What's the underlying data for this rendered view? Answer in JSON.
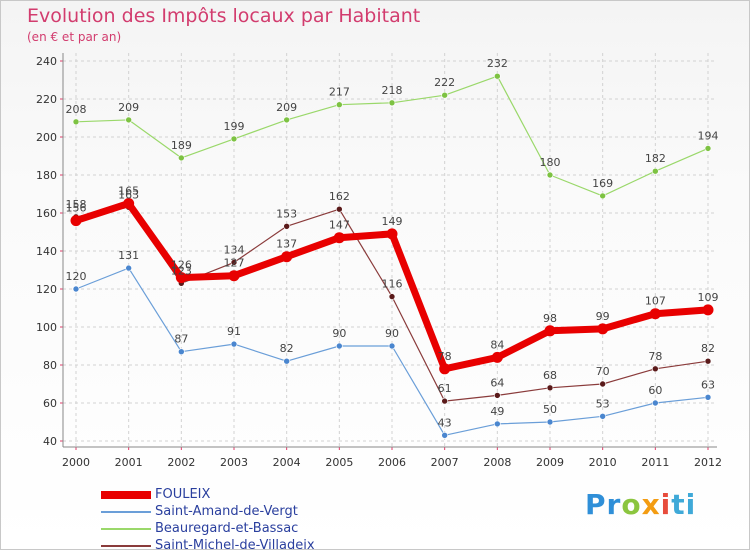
{
  "title": "Evolution des Impôts locaux par Habitant",
  "subtitle": "(en € et par an)",
  "logo": {
    "text": "Proxiti",
    "parts": [
      "Pr",
      "o",
      "x",
      "i",
      "ti"
    ]
  },
  "chart_data": {
    "type": "line",
    "title": "Evolution des Impôts locaux par Habitant",
    "subtitle": "(en € et par an)",
    "xlabel": "",
    "ylabel": "",
    "x": [
      "2000",
      "2001",
      "2002",
      "2003",
      "2004",
      "2005",
      "2006",
      "2007",
      "2008",
      "2009",
      "2010",
      "2011",
      "2012"
    ],
    "ylim": [
      40,
      240
    ],
    "yticks": [
      40,
      60,
      80,
      100,
      120,
      140,
      160,
      180,
      200,
      220,
      240
    ],
    "grid": true,
    "legend_position": "bottom-left",
    "series": [
      {
        "name": "FOULEIX",
        "color": "#e80000",
        "marker": "#e80000",
        "emphasis": true,
        "values": [
          156,
          165,
          126,
          127,
          137,
          147,
          149,
          78,
          84,
          98,
          99,
          107,
          109
        ]
      },
      {
        "name": "Saint-Amand-de-Vergt",
        "color": "#6a9ed8",
        "marker": "#4a86cf",
        "values": [
          120,
          131,
          87,
          91,
          82,
          90,
          90,
          43,
          49,
          50,
          53,
          60,
          63
        ]
      },
      {
        "name": "Beauregard-et-Bassac",
        "color": "#9ad86a",
        "marker": "#7dc242",
        "values": [
          208,
          209,
          189,
          199,
          209,
          217,
          218,
          222,
          232,
          180,
          169,
          182,
          194
        ]
      },
      {
        "name": "Saint-Michel-de-Villadeix",
        "color": "#8a3b3b",
        "marker": "#5a1a1a",
        "values": [
          158,
          163,
          123,
          134,
          153,
          162,
          116,
          61,
          64,
          68,
          70,
          78,
          82
        ]
      }
    ]
  }
}
